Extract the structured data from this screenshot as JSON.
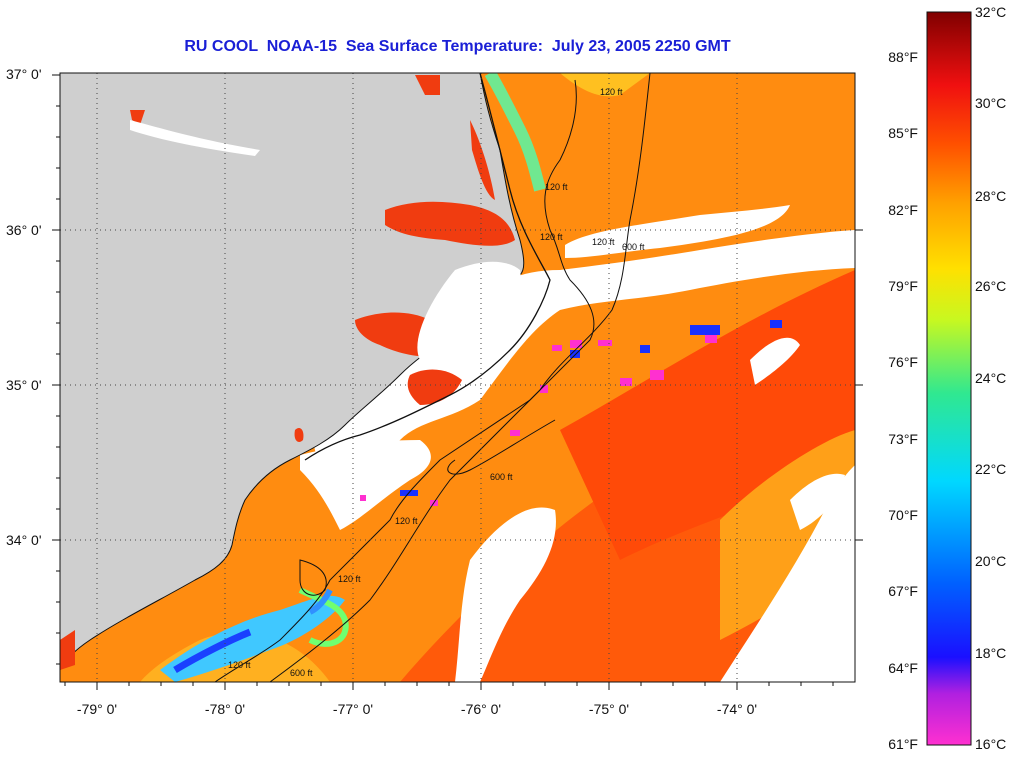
{
  "title": "RU COOL  NOAA-15  Sea Surface Temperature:  July 23, 2005 2250 GMT",
  "lat_labels": [
    "37° 0'",
    "36° 0'",
    "35° 0'",
    "34° 0'"
  ],
  "lon_labels": [
    "-79° 0'",
    "-78° 0'",
    "-77° 0'",
    "-76° 0'",
    "-75° 0'",
    "-74° 0'"
  ],
  "colorbar": {
    "fahrenheit_labels": [
      "88°F",
      "85°F",
      "82°F",
      "79°F",
      "76°F",
      "73°F",
      "70°F",
      "67°F",
      "64°F",
      "61°F"
    ],
    "celsius_labels": [
      "32°C",
      "30°C",
      "28°C",
      "26°C",
      "24°C",
      "22°C",
      "20°C",
      "18°C",
      "16°C"
    ],
    "colors": [
      "#ff30d0",
      "#a020f0",
      "#1010ff",
      "#00d0ff",
      "#20e0a0",
      "#c0ff20",
      "#ffe000",
      "#ff9000",
      "#ff2000",
      "#800000"
    ]
  },
  "isobaths": [
    "120 ft",
    "120 ft",
    "120 ft",
    "120 ft",
    "600 ft",
    "600 ft",
    "600 ft",
    "120 ft",
    "120 ft",
    "120 ft"
  ]
}
